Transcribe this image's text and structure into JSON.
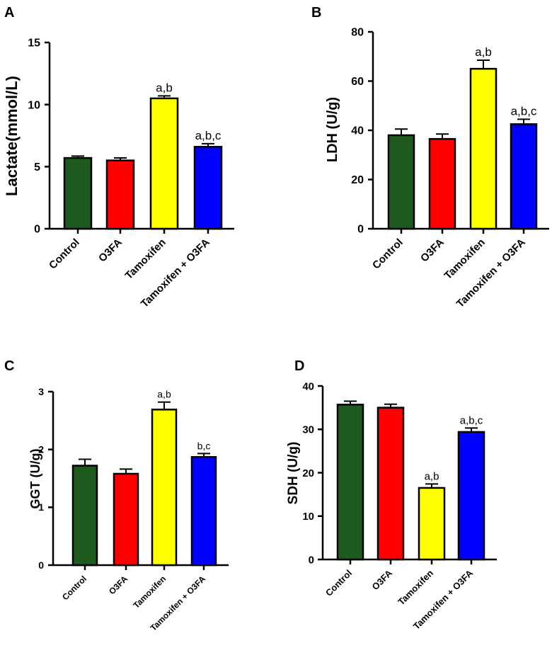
{
  "chart_data": [
    {
      "type": "bar",
      "panel": "A",
      "ylabel": "Lactate(mmol/L)",
      "xlabel": "",
      "categories": [
        "Control",
        "O3FA",
        "Tamoxifen",
        "Tamoxifen + O3FA"
      ],
      "values": [
        5.7,
        5.5,
        10.5,
        6.6
      ],
      "errors": [
        0.15,
        0.2,
        0.2,
        0.25
      ],
      "annotations": [
        "",
        "",
        "a,b",
        "a,b,c"
      ],
      "colors": [
        "#1e5a1e",
        "#ff0000",
        "#ffff00",
        "#0000ff"
      ],
      "ylim": [
        0,
        15
      ],
      "yticks": [
        0,
        5,
        10,
        15
      ]
    },
    {
      "type": "bar",
      "panel": "B",
      "ylabel": "LDH (U/g)",
      "xlabel": "",
      "categories": [
        "Control",
        "O3FA",
        "Tamoxifen",
        "Tamoxifen + O3FA"
      ],
      "values": [
        38,
        36.5,
        65,
        42.5
      ],
      "errors": [
        2.5,
        2.0,
        3.5,
        2.0
      ],
      "annotations": [
        "",
        "",
        "a,b",
        "a,b,c"
      ],
      "colors": [
        "#1e5a1e",
        "#ff0000",
        "#ffff00",
        "#0000ff"
      ],
      "ylim": [
        0,
        80
      ],
      "yticks": [
        0,
        20,
        40,
        60,
        80
      ]
    },
    {
      "type": "bar",
      "panel": "C",
      "ylabel": "GGT (U/g)",
      "xlabel": "",
      "categories": [
        "Control",
        "O3FA",
        "Tamoxifen",
        "Tamoxifen + O3FA"
      ],
      "values": [
        1.72,
        1.58,
        2.69,
        1.87
      ],
      "errors": [
        0.11,
        0.08,
        0.13,
        0.06
      ],
      "annotations": [
        "",
        "",
        "a,b",
        "b,c"
      ],
      "colors": [
        "#1e5a1e",
        "#ff0000",
        "#ffff00",
        "#0000ff"
      ],
      "ylim": [
        0,
        3
      ],
      "yticks": [
        0,
        1,
        2,
        3
      ]
    },
    {
      "type": "bar",
      "panel": "D",
      "ylabel": "SDH (U/g)",
      "xlabel": "",
      "categories": [
        "Control",
        "O3FA",
        "Tamoxifen",
        "Tamoxifen + O3FA"
      ],
      "values": [
        35.7,
        35.0,
        16.5,
        29.4
      ],
      "errors": [
        0.8,
        0.8,
        0.9,
        0.9
      ],
      "annotations": [
        "",
        "",
        "a,b",
        "a,b,c"
      ],
      "colors": [
        "#1e5a1e",
        "#ff0000",
        "#ffff00",
        "#0000ff"
      ],
      "ylim": [
        0,
        40
      ],
      "yticks": [
        0,
        10,
        20,
        30,
        40
      ]
    }
  ]
}
